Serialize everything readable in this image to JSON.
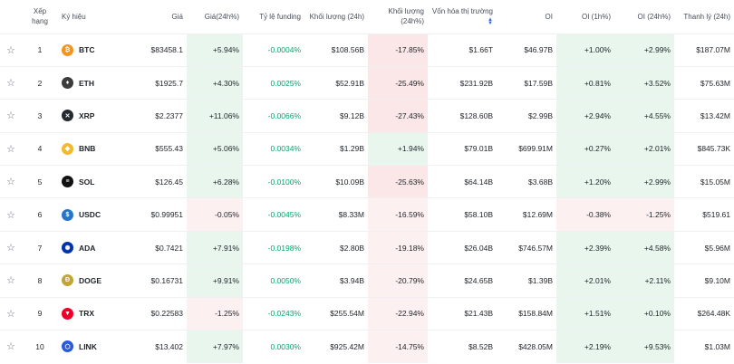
{
  "headers": {
    "rank": "Xếp hạng",
    "symbol": "Ký hiệu",
    "price": "Giá",
    "change24h": "Giá(24h%)",
    "funding": "Tỷ lệ funding",
    "volume": "Khối lượng (24h)",
    "volumeChange": "Khối lượng (24h%)",
    "marketCap": "Vốn hóa thị trường",
    "oi": "OI",
    "oi1h": "OI (1h%)",
    "oi24h": "OI (24h%)",
    "liquidation": "Thanh lý (24h)"
  },
  "rows": [
    {
      "rank": "1",
      "symbol": "BTC",
      "icon": "bitcoin-icon",
      "iconColor": "#f7931a",
      "glyph": "₿",
      "price": "$83458.1",
      "change": "+5.94%",
      "changeBg": "green",
      "funding": "-0.0004%",
      "volume": "$108.56B",
      "volChange": "-17.85%",
      "volBg": "red",
      "mcap": "$1.66T",
      "oi": "$46.97B",
      "oi1h": "+1.00%",
      "oi1hBg": "green",
      "oi24h": "+2.99%",
      "oi24hBg": "green",
      "liq": "$187.07M"
    },
    {
      "rank": "2",
      "symbol": "ETH",
      "icon": "ethereum-icon",
      "iconColor": "#3c3c3d",
      "glyph": "♦",
      "price": "$1925.7",
      "change": "+4.30%",
      "changeBg": "green",
      "funding": "0.0025%",
      "volume": "$52.91B",
      "volChange": "-25.49%",
      "volBg": "red",
      "mcap": "$231.92B",
      "oi": "$17.59B",
      "oi1h": "+0.81%",
      "oi1hBg": "green",
      "oi24h": "+3.52%",
      "oi24hBg": "green",
      "liq": "$75.63M"
    },
    {
      "rank": "3",
      "symbol": "XRP",
      "icon": "xrp-icon",
      "iconColor": "#23292f",
      "glyph": "✕",
      "price": "$2.2377",
      "change": "+11.06%",
      "changeBg": "green",
      "funding": "-0.0066%",
      "volume": "$9.12B",
      "volChange": "-27.43%",
      "volBg": "red",
      "mcap": "$128.60B",
      "oi": "$2.99B",
      "oi1h": "+2.94%",
      "oi1hBg": "green",
      "oi24h": "+4.55%",
      "oi24hBg": "green",
      "liq": "$13.42M"
    },
    {
      "rank": "4",
      "symbol": "BNB",
      "icon": "bnb-icon",
      "iconColor": "#f3ba2f",
      "glyph": "◆",
      "price": "$555.43",
      "change": "+5.06%",
      "changeBg": "green",
      "funding": "0.0034%",
      "volume": "$1.29B",
      "volChange": "+1.94%",
      "volBg": "green",
      "mcap": "$79.01B",
      "oi": "$699.91M",
      "oi1h": "+0.27%",
      "oi1hBg": "green",
      "oi24h": "+2.01%",
      "oi24hBg": "green",
      "liq": "$845.73K"
    },
    {
      "rank": "5",
      "symbol": "SOL",
      "icon": "solana-icon",
      "iconColor": "#111111",
      "glyph": "≡",
      "price": "$126.45",
      "change": "+6.28%",
      "changeBg": "green",
      "funding": "-0.0100%",
      "volume": "$10.09B",
      "volChange": "-25.63%",
      "volBg": "red",
      "mcap": "$64.14B",
      "oi": "$3.68B",
      "oi1h": "+1.20%",
      "oi1hBg": "green",
      "oi24h": "+2.99%",
      "oi24hBg": "green",
      "liq": "$15.05M"
    },
    {
      "rank": "6",
      "symbol": "USDC",
      "icon": "usdc-icon",
      "iconColor": "#2775ca",
      "glyph": "$",
      "price": "$0.99951",
      "change": "-0.05%",
      "changeBg": "lightred",
      "funding": "-0.0045%",
      "volume": "$8.33M",
      "volChange": "-16.59%",
      "volBg": "lightred",
      "mcap": "$58.10B",
      "oi": "$12.69M",
      "oi1h": "-0.38%",
      "oi1hBg": "lightred",
      "oi24h": "-1.25%",
      "oi24hBg": "lightred",
      "liq": "$519.61"
    },
    {
      "rank": "7",
      "symbol": "ADA",
      "icon": "cardano-icon",
      "iconColor": "#0033ad",
      "glyph": "✺",
      "price": "$0.7421",
      "change": "+7.91%",
      "changeBg": "green",
      "funding": "-0.0198%",
      "volume": "$2.80B",
      "volChange": "-19.18%",
      "volBg": "lightred",
      "mcap": "$26.04B",
      "oi": "$746.57M",
      "oi1h": "+2.39%",
      "oi1hBg": "green",
      "oi24h": "+4.58%",
      "oi24hBg": "green",
      "liq": "$5.96M"
    },
    {
      "rank": "8",
      "symbol": "DOGE",
      "icon": "dogecoin-icon",
      "iconColor": "#c2a633",
      "glyph": "Ð",
      "price": "$0.16731",
      "change": "+9.91%",
      "changeBg": "green",
      "funding": "0.0050%",
      "volume": "$3.94B",
      "volChange": "-20.79%",
      "volBg": "lightred",
      "mcap": "$24.65B",
      "oi": "$1.39B",
      "oi1h": "+2.01%",
      "oi1hBg": "green",
      "oi24h": "+2.11%",
      "oi24hBg": "green",
      "liq": "$9.10M"
    },
    {
      "rank": "9",
      "symbol": "TRX",
      "icon": "tron-icon",
      "iconColor": "#ef0027",
      "glyph": "▼",
      "price": "$0.22583",
      "change": "-1.25%",
      "changeBg": "lightred",
      "funding": "-0.0243%",
      "volume": "$255.54M",
      "volChange": "-22.94%",
      "volBg": "lightred",
      "mcap": "$21.43B",
      "oi": "$158.84M",
      "oi1h": "+1.51%",
      "oi1hBg": "green",
      "oi24h": "+0.10%",
      "oi24hBg": "green",
      "liq": "$264.48K"
    },
    {
      "rank": "10",
      "symbol": "LINK",
      "icon": "chainlink-icon",
      "iconColor": "#2a5ada",
      "glyph": "⬡",
      "price": "$13.402",
      "change": "+7.97%",
      "changeBg": "green",
      "funding": "0.0030%",
      "volume": "$925.42M",
      "volChange": "-14.75%",
      "volBg": "lightred",
      "mcap": "$8.52B",
      "oi": "$428.05M",
      "oi1h": "+2.19%",
      "oi1hBg": "green",
      "oi24h": "+9.53%",
      "oi24hBg": "green",
      "liq": "$1.03M"
    }
  ]
}
